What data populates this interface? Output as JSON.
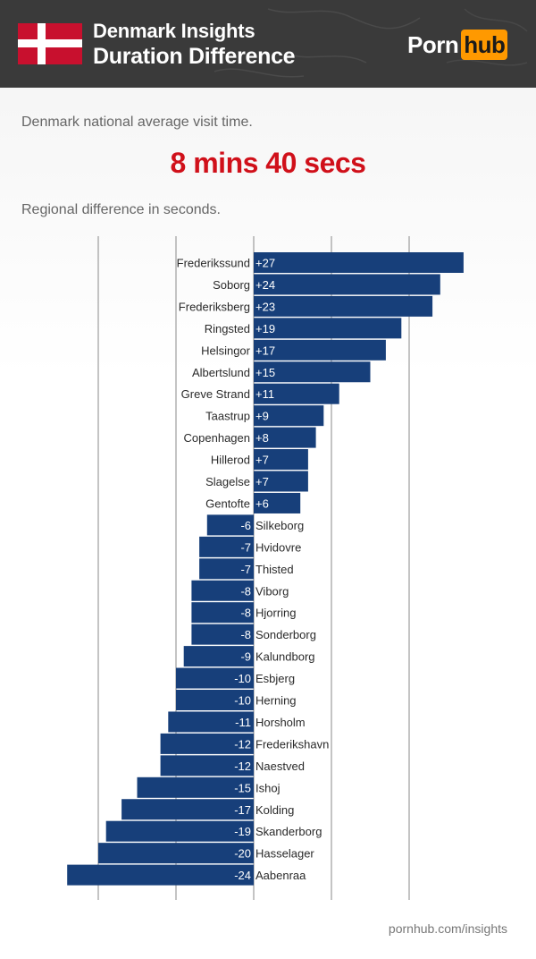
{
  "header": {
    "title_line1": "Denmark Insights",
    "title_line2": "Duration Difference",
    "brand_part1": "Porn",
    "brand_part2": "hub",
    "colors": {
      "background": "#3a3a3a",
      "brand_accent": "#ff9900",
      "flag_red": "#c8102e"
    }
  },
  "subtitle": "Denmark national average visit time.",
  "national_average": "8 mins 40 secs",
  "note": "Regional difference in seconds.",
  "footer": "pornhub.com/insights",
  "chart_data": {
    "type": "bar",
    "orientation": "horizontal",
    "unit": "seconds",
    "categories": [
      "Frederikssund",
      "Soborg",
      "Frederiksberg",
      "Ringsted",
      "Helsingor",
      "Albertslund",
      "Greve Strand",
      "Taastrup",
      "Copenhagen",
      "Hillerod",
      "Slagelse",
      "Gentofte",
      "Silkeborg",
      "Hvidovre",
      "Thisted",
      "Viborg",
      "Hjorring",
      "Sonderborg",
      "Kalundborg",
      "Esbjerg",
      "Herning",
      "Horsholm",
      "Frederikshavn",
      "Naestved",
      "Ishoj",
      "Kolding",
      "Skanderborg",
      "Hasselager",
      "Aabenraa"
    ],
    "values": [
      27,
      24,
      23,
      19,
      17,
      15,
      11,
      9,
      8,
      7,
      7,
      6,
      -6,
      -7,
      -7,
      -8,
      -8,
      -8,
      -9,
      -10,
      -10,
      -11,
      -12,
      -12,
      -15,
      -17,
      -19,
      -20,
      -24
    ],
    "value_labels": [
      "+27",
      "+24",
      "+23",
      "+19",
      "+17",
      "+15",
      "+11",
      "+9",
      "+8",
      "+7",
      "+7",
      "+6",
      "-6",
      "-7",
      "-7",
      "-8",
      "-8",
      "-8",
      "-9",
      "-10",
      "-10",
      "-11",
      "-12",
      "-12",
      "-15",
      "-17",
      "-19",
      "-20",
      "-24"
    ],
    "xlim": [
      -24,
      27
    ],
    "grid": true,
    "bar_color": "#173f7a"
  }
}
